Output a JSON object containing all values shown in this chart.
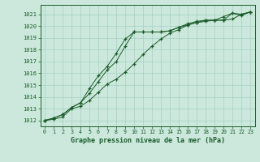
{
  "background_color": "#cce8dd",
  "grid_color": "#99ccbb",
  "line_color": "#1a5c28",
  "text_color": "#1a5c28",
  "xlabel": "Graphe pression niveau de la mer (hPa)",
  "xlim": [
    -0.5,
    23.5
  ],
  "ylim": [
    1011.5,
    1021.8
  ],
  "xticks": [
    0,
    1,
    2,
    3,
    4,
    5,
    6,
    7,
    8,
    9,
    10,
    11,
    12,
    13,
    14,
    15,
    16,
    17,
    18,
    19,
    20,
    21,
    22,
    23
  ],
  "yticks": [
    1012,
    1013,
    1014,
    1015,
    1016,
    1017,
    1018,
    1019,
    1020,
    1021
  ],
  "series1_x": [
    0,
    1,
    2,
    3,
    4,
    5,
    6,
    7,
    8,
    9,
    10,
    11,
    12,
    13,
    14,
    15,
    16,
    17,
    18,
    19,
    20,
    21,
    22,
    23
  ],
  "series1_y": [
    1012.0,
    1012.2,
    1012.5,
    1013.1,
    1013.5,
    1014.7,
    1015.8,
    1016.6,
    1017.7,
    1018.9,
    1019.5,
    1019.5,
    1019.5,
    1019.5,
    1019.6,
    1019.9,
    1020.1,
    1020.3,
    1020.4,
    1020.5,
    1020.5,
    1021.1,
    1021.0,
    1021.2
  ],
  "series2_x": [
    0,
    1,
    2,
    3,
    4,
    5,
    6,
    7,
    8,
    9,
    10,
    11,
    12,
    13,
    14,
    15,
    16,
    17,
    18,
    19,
    20,
    21,
    22,
    23
  ],
  "series2_y": [
    1012.0,
    1012.2,
    1012.5,
    1013.1,
    1013.5,
    1014.3,
    1015.3,
    1016.3,
    1017.0,
    1018.3,
    1019.5,
    1019.5,
    1019.5,
    1019.5,
    1019.6,
    1019.9,
    1020.2,
    1020.4,
    1020.5,
    1020.5,
    1020.8,
    1021.1,
    1020.9,
    1021.2
  ],
  "series3_x": [
    0,
    1,
    2,
    3,
    4,
    5,
    6,
    7,
    8,
    9,
    10,
    11,
    12,
    13,
    14,
    15,
    16,
    17,
    18,
    19,
    20,
    21,
    22,
    23
  ],
  "series3_y": [
    1012.0,
    1012.1,
    1012.3,
    1013.0,
    1013.2,
    1013.7,
    1014.4,
    1015.1,
    1015.5,
    1016.1,
    1016.8,
    1017.6,
    1018.3,
    1018.9,
    1019.4,
    1019.7,
    1020.1,
    1020.3,
    1020.5,
    1020.5,
    1020.5,
    1020.6,
    1021.0,
    1021.2
  ]
}
